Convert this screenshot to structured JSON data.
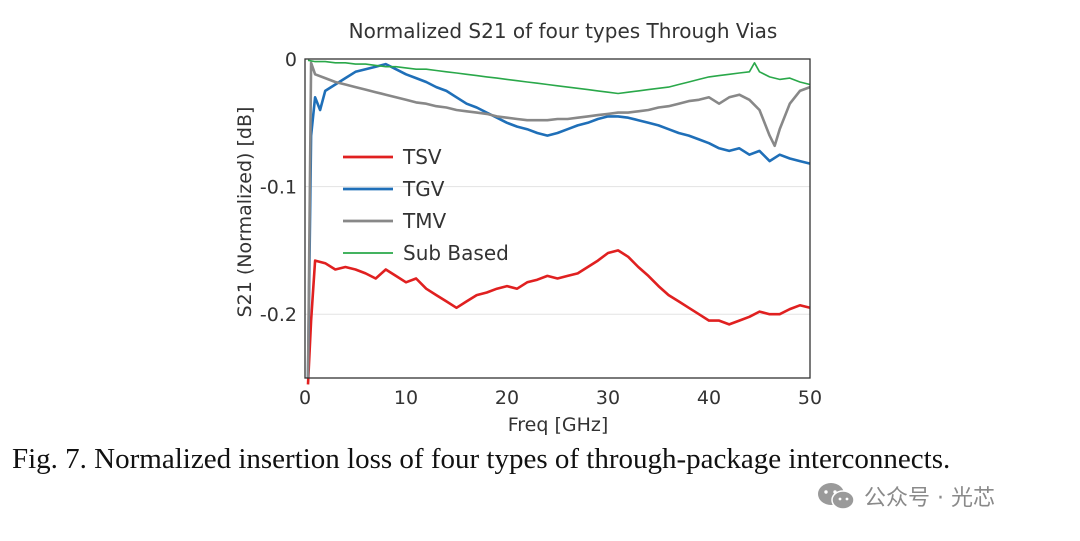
{
  "chart_data": {
    "type": "line",
    "title": "Normalized S21 of four types Through Vias",
    "xlabel": "Freq [GHz]",
    "ylabel": "S21 (Normalized) [dB]",
    "xlim": [
      0,
      50
    ],
    "ylim": [
      -0.25,
      0
    ],
    "xticks": [
      0,
      10,
      20,
      30,
      40,
      50
    ],
    "yticks": [
      0,
      -0.1,
      -0.2
    ],
    "xtick_labels": [
      "0",
      "10",
      "20",
      "30",
      "40",
      "50"
    ],
    "ytick_labels": [
      "0",
      "-0.1",
      "-0.2"
    ],
    "grid": "horizontal",
    "legend_position": "center-left",
    "series": [
      {
        "name": "TSV",
        "color": "#e02020",
        "x": [
          0.3,
          0.6,
          1,
          2,
          3,
          4,
          5,
          6,
          7,
          8,
          9,
          10,
          11,
          12,
          13,
          14,
          15,
          16,
          17,
          18,
          19,
          20,
          21,
          22,
          23,
          24,
          25,
          26,
          27,
          28,
          29,
          30,
          31,
          32,
          33,
          34,
          35,
          36,
          37,
          38,
          39,
          40,
          41,
          42,
          43,
          44,
          45,
          46,
          47,
          48,
          49,
          50
        ],
        "y": [
          -0.255,
          -0.205,
          -0.158,
          -0.16,
          -0.165,
          -0.163,
          -0.165,
          -0.168,
          -0.172,
          -0.165,
          -0.17,
          -0.175,
          -0.172,
          -0.18,
          -0.185,
          -0.19,
          -0.195,
          -0.19,
          -0.185,
          -0.183,
          -0.18,
          -0.178,
          -0.18,
          -0.175,
          -0.173,
          -0.17,
          -0.172,
          -0.17,
          -0.168,
          -0.163,
          -0.158,
          -0.152,
          -0.15,
          -0.155,
          -0.163,
          -0.17,
          -0.178,
          -0.185,
          -0.19,
          -0.195,
          -0.2,
          -0.205,
          -0.205,
          -0.208,
          -0.205,
          -0.202,
          -0.198,
          -0.2,
          -0.2,
          -0.196,
          -0.193,
          -0.195
        ]
      },
      {
        "name": "TGV",
        "color": "#1f6fb8",
        "x": [
          0.3,
          0.6,
          1,
          1.5,
          2,
          3,
          4,
          5,
          6,
          7,
          8,
          9,
          10,
          11,
          12,
          13,
          14,
          15,
          16,
          17,
          18,
          19,
          20,
          21,
          22,
          23,
          24,
          25,
          26,
          27,
          28,
          29,
          30,
          31,
          32,
          33,
          34,
          35,
          36,
          37,
          38,
          39,
          40,
          41,
          42,
          43,
          44,
          45,
          46,
          47,
          48,
          49,
          50
        ],
        "y": [
          -0.25,
          -0.06,
          -0.03,
          -0.04,
          -0.025,
          -0.02,
          -0.015,
          -0.01,
          -0.008,
          -0.006,
          -0.004,
          -0.008,
          -0.012,
          -0.015,
          -0.018,
          -0.022,
          -0.025,
          -0.03,
          -0.035,
          -0.038,
          -0.042,
          -0.046,
          -0.05,
          -0.053,
          -0.055,
          -0.058,
          -0.06,
          -0.058,
          -0.055,
          -0.052,
          -0.05,
          -0.047,
          -0.045,
          -0.045,
          -0.046,
          -0.048,
          -0.05,
          -0.052,
          -0.055,
          -0.058,
          -0.06,
          -0.063,
          -0.066,
          -0.07,
          -0.072,
          -0.07,
          -0.075,
          -0.072,
          -0.08,
          -0.075,
          -0.078,
          -0.08,
          -0.082
        ]
      },
      {
        "name": "TMV",
        "color": "#888888",
        "x": [
          0.3,
          0.6,
          1,
          2,
          3,
          4,
          5,
          6,
          7,
          8,
          9,
          10,
          11,
          12,
          13,
          14,
          15,
          16,
          17,
          18,
          19,
          20,
          21,
          22,
          23,
          24,
          25,
          26,
          27,
          28,
          29,
          30,
          31,
          32,
          33,
          34,
          35,
          36,
          37,
          38,
          39,
          40,
          41,
          42,
          43,
          44,
          45,
          46,
          46.5,
          47,
          48,
          49,
          50
        ],
        "y": [
          -0.25,
          -0.003,
          -0.012,
          -0.015,
          -0.018,
          -0.02,
          -0.022,
          -0.024,
          -0.026,
          -0.028,
          -0.03,
          -0.032,
          -0.034,
          -0.035,
          -0.037,
          -0.038,
          -0.04,
          -0.041,
          -0.042,
          -0.043,
          -0.045,
          -0.046,
          -0.047,
          -0.048,
          -0.048,
          -0.048,
          -0.047,
          -0.047,
          -0.046,
          -0.045,
          -0.044,
          -0.043,
          -0.042,
          -0.042,
          -0.041,
          -0.04,
          -0.038,
          -0.037,
          -0.035,
          -0.033,
          -0.032,
          -0.03,
          -0.035,
          -0.03,
          -0.028,
          -0.032,
          -0.04,
          -0.06,
          -0.068,
          -0.055,
          -0.035,
          -0.025,
          -0.022
        ]
      },
      {
        "name": "Sub Based",
        "color": "#2aa84a",
        "x": [
          0.3,
          1,
          2,
          3,
          4,
          5,
          6,
          7,
          8,
          9,
          10,
          11,
          12,
          13,
          14,
          15,
          16,
          17,
          18,
          19,
          20,
          21,
          22,
          23,
          24,
          25,
          26,
          27,
          28,
          29,
          30,
          31,
          32,
          33,
          34,
          35,
          36,
          37,
          38,
          39,
          40,
          41,
          42,
          43,
          44,
          44.5,
          45,
          46,
          47,
          48,
          49,
          50
        ],
        "y": [
          -0.001,
          -0.002,
          -0.002,
          -0.003,
          -0.003,
          -0.004,
          -0.004,
          -0.005,
          -0.006,
          -0.006,
          -0.007,
          -0.008,
          -0.008,
          -0.009,
          -0.01,
          -0.011,
          -0.012,
          -0.013,
          -0.014,
          -0.015,
          -0.016,
          -0.017,
          -0.018,
          -0.019,
          -0.02,
          -0.021,
          -0.022,
          -0.023,
          -0.024,
          -0.025,
          -0.026,
          -0.027,
          -0.026,
          -0.025,
          -0.024,
          -0.023,
          -0.022,
          -0.02,
          -0.018,
          -0.016,
          -0.014,
          -0.013,
          -0.012,
          -0.011,
          -0.01,
          -0.003,
          -0.01,
          -0.014,
          -0.016,
          -0.015,
          -0.018,
          -0.02
        ]
      }
    ]
  },
  "caption": "Fig. 7. Normalized insertion loss of four types of through-package interconnects.",
  "watermark": {
    "icon": "wechat-icon",
    "text": "公众号 · 光芯"
  }
}
